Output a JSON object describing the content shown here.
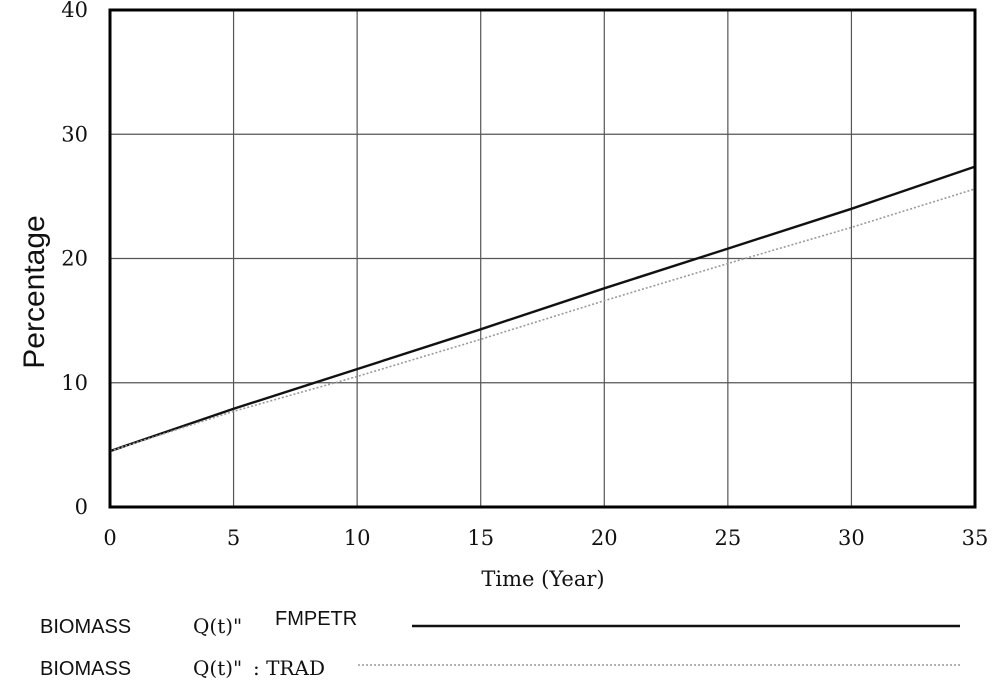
{
  "chart_data": {
    "type": "line",
    "title": "",
    "xlabel": "Time (Year)",
    "ylabel": "Percentage",
    "xlim": [
      0,
      35
    ],
    "ylim": [
      0,
      40
    ],
    "x_ticks": [
      "0",
      "5",
      "10",
      "15",
      "20",
      "25",
      "30",
      "35"
    ],
    "y_ticks": [
      "0",
      "10",
      "20",
      "30",
      "40"
    ],
    "grid": true,
    "legend_placement": "bottom",
    "series": [
      {
        "legend_prefix": "BIOMASS",
        "legend_mid": "Q(t)\"",
        "legend_suffix": "FMPETR",
        "style": "solid",
        "color": "#111111",
        "x": [
          0,
          5,
          10,
          15,
          20,
          25,
          30,
          35
        ],
        "y": [
          4.5,
          7.9,
          11.1,
          14.3,
          17.6,
          20.8,
          24.0,
          27.4
        ]
      },
      {
        "legend_prefix": "BIOMASS",
        "legend_mid": "Q(t)\"",
        "legend_suffix": ": TRAD",
        "style": "dotted",
        "color": "#9a9a9a",
        "x": [
          0,
          5,
          10,
          15,
          20,
          25,
          30,
          35
        ],
        "y": [
          4.5,
          7.7,
          10.5,
          13.5,
          16.6,
          19.6,
          22.5,
          25.6
        ]
      }
    ]
  }
}
